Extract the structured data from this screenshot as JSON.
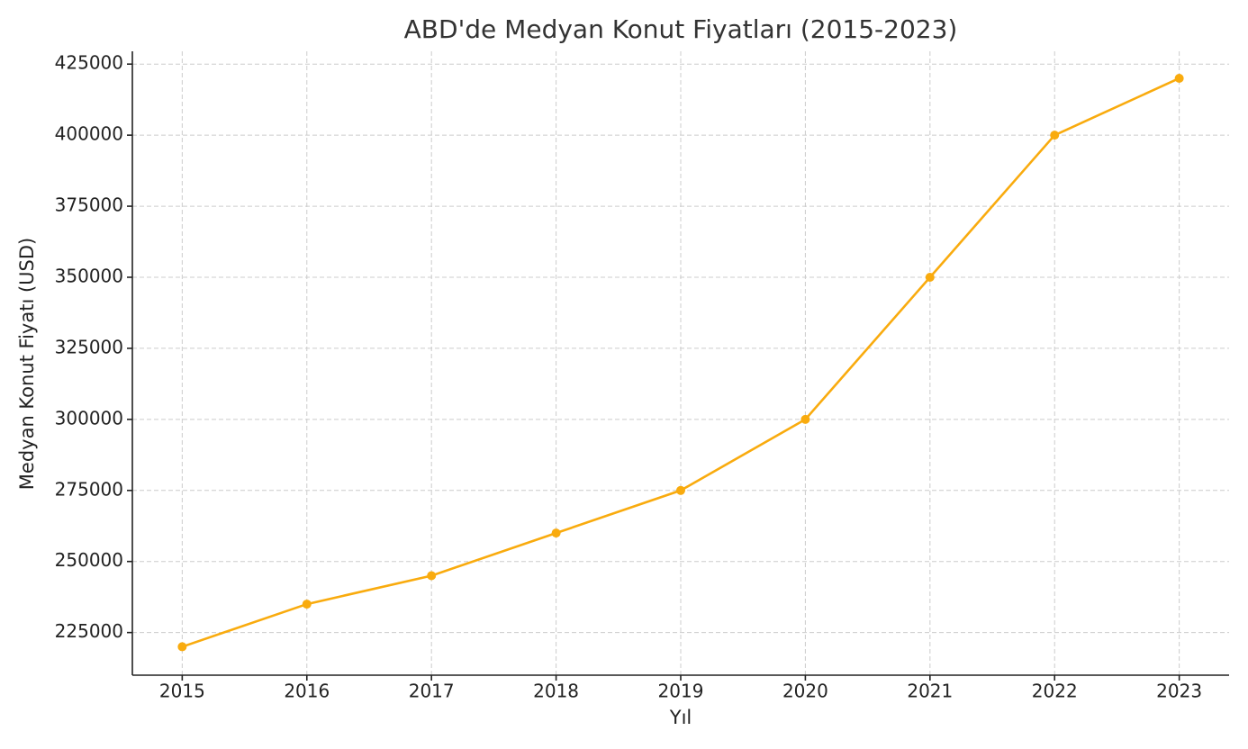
{
  "chart_data": {
    "type": "line",
    "title": "ABD'de Medyan Konut Fiyatları (2015-2023)",
    "x_label": "Yıl",
    "y_label": "Medyan Konut Fiyatı (USD)",
    "x": [
      2015,
      2016,
      2017,
      2018,
      2019,
      2020,
      2021,
      2022,
      2023
    ],
    "series": [
      {
        "name": "Medyan Konut Fiyatı",
        "color": "#f9ab0e",
        "values": [
          220000,
          235000,
          245000,
          260000,
          275000,
          300000,
          350000,
          400000,
          420000
        ]
      }
    ],
    "xlim": [
      2014.6,
      2023.4
    ],
    "xticks": [
      2015,
      2016,
      2017,
      2018,
      2019,
      2020,
      2021,
      2022,
      2023
    ],
    "ylim": [
      210000,
      429500
    ],
    "yticks": [
      225000,
      250000,
      275000,
      300000,
      325000,
      350000,
      375000,
      400000,
      425000
    ],
    "grid": true
  }
}
